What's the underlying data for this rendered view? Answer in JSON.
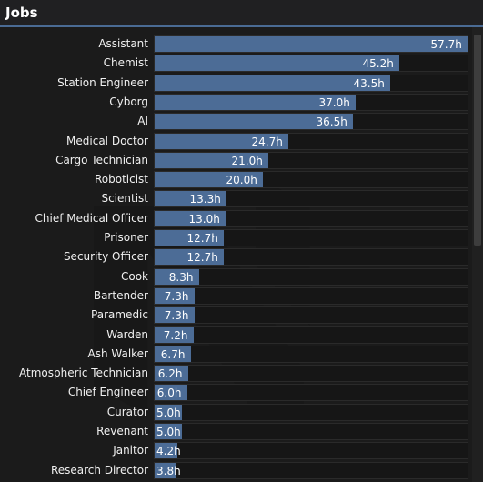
{
  "header": {
    "title": "Jobs"
  },
  "colors": {
    "bar": "#4c6c96",
    "accent": "#4a6b94",
    "track": "#161616"
  },
  "chart_data": {
    "type": "bar",
    "orientation": "horizontal",
    "max": 57.7,
    "categories": [
      "Assistant",
      "Chemist",
      "Station Engineer",
      "Cyborg",
      "AI",
      "Medical Doctor",
      "Cargo Technician",
      "Roboticist",
      "Scientist",
      "Chief Medical Officer",
      "Prisoner",
      "Security Officer",
      "Cook",
      "Bartender",
      "Paramedic",
      "Warden",
      "Ash Walker",
      "Atmospheric Technician",
      "Chief Engineer",
      "Curator",
      "Revenant",
      "Janitor",
      "Research Director"
    ],
    "values": [
      57.7,
      45.2,
      43.5,
      37.0,
      36.5,
      24.7,
      21.0,
      20.0,
      13.3,
      13.0,
      12.7,
      12.7,
      8.3,
      7.3,
      7.3,
      7.2,
      6.7,
      6.2,
      6.0,
      5.0,
      5.0,
      4.2,
      3.8
    ],
    "value_labels": [
      "57.7h",
      "45.2h",
      "43.5h",
      "37.0h",
      "36.5h",
      "24.7h",
      "21.0h",
      "20.0h",
      "13.3h",
      "13.0h",
      "12.7h",
      "12.7h",
      "8.3h",
      "7.3h",
      "7.3h",
      "7.2h",
      "6.7h",
      "6.2h",
      "6.0h",
      "5.0h",
      "5.0h",
      "4.2h",
      "3.8h"
    ]
  }
}
